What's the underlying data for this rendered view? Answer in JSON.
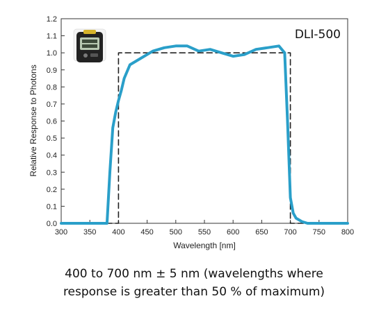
{
  "colors": {
    "response_line": "#2a9fc9",
    "reference_box": "#222222",
    "axis": "#333333"
  },
  "chart_data": {
    "type": "line",
    "product_label": "DLI-500",
    "xlabel": "Wavelength [nm]",
    "ylabel": "Relative Response to Photons",
    "xlim": [
      300,
      800
    ],
    "ylim": [
      0.0,
      1.2
    ],
    "x_ticks": [
      300,
      350,
      400,
      450,
      500,
      550,
      600,
      650,
      700,
      750,
      800
    ],
    "y_ticks": [
      "0.0",
      "0.1",
      "0.2",
      "0.3",
      "0.4",
      "0.5",
      "0.6",
      "0.7",
      "0.8",
      "0.9",
      "1.0",
      "1.1",
      "1.2"
    ],
    "grid": false,
    "series": [
      {
        "style": "solid",
        "x": [
          300,
          350,
          380,
          385,
          390,
          395,
          400,
          405,
          410,
          420,
          440,
          460,
          480,
          500,
          520,
          540,
          560,
          580,
          600,
          620,
          640,
          660,
          680,
          690,
          695,
          700,
          705,
          710,
          720,
          730,
          800
        ],
        "y": [
          0.0,
          0.0,
          0.0,
          0.3,
          0.56,
          0.65,
          0.72,
          0.78,
          0.85,
          0.93,
          0.97,
          1.01,
          1.03,
          1.04,
          1.04,
          1.01,
          1.02,
          1.0,
          0.98,
          0.99,
          1.02,
          1.03,
          1.04,
          1.0,
          0.6,
          0.15,
          0.06,
          0.03,
          0.01,
          0.0,
          0.0
        ]
      },
      {
        "style": "dashed",
        "x": [
          300,
          400,
          400,
          700,
          700,
          800
        ],
        "y": [
          0.0,
          0.0,
          1.0,
          1.0,
          0.0,
          0.0
        ]
      }
    ]
  },
  "caption": {
    "line1": "400 to 700 nm ± 5 nm (wavelengths where",
    "line2": "response is greater than 50 % of maximum)"
  },
  "device": {
    "icon": "dli-meter-device-icon"
  }
}
